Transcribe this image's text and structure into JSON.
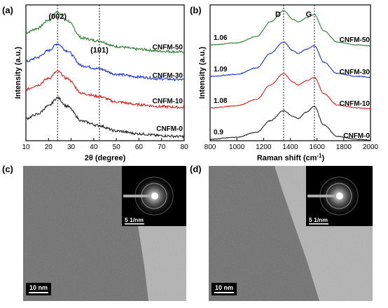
{
  "chart_data": [
    {
      "panel": "(a)",
      "type": "line",
      "xlabel": "2θ (degree)",
      "ylabel": "Intensity (a.u.)",
      "xlim": [
        10,
        80
      ],
      "xticks": [
        "10",
        "20",
        "30",
        "40",
        "50",
        "60",
        "70",
        "80"
      ],
      "grid": false,
      "legend": "none",
      "annotations": [
        {
          "text": "(002)",
          "x": 24
        },
        {
          "text": "(101)",
          "x": 42.5
        }
      ],
      "reference_lines_x": [
        24,
        42.5
      ],
      "series": [
        {
          "name": "CNFM-50",
          "color": "#2e7d32",
          "offset": 3.15,
          "x": [
            10,
            15,
            20,
            24,
            28,
            35,
            42,
            50,
            60,
            70,
            80
          ],
          "y": [
            0.75,
            0.9,
            1.2,
            1.5,
            1.2,
            0.55,
            0.45,
            0.25,
            0.15,
            0.08,
            0.05
          ]
        },
        {
          "name": "CNFM-30",
          "color": "#1e34d0",
          "offset": 2.15,
          "x": [
            10,
            15,
            20,
            24,
            28,
            35,
            42,
            50,
            60,
            70,
            80
          ],
          "y": [
            0.7,
            0.85,
            1.1,
            1.35,
            1.1,
            0.55,
            0.45,
            0.25,
            0.15,
            0.08,
            0.05
          ]
        },
        {
          "name": "CNFM-10",
          "color": "#e02020",
          "offset": 1.15,
          "x": [
            10,
            15,
            20,
            24,
            28,
            35,
            42,
            50,
            60,
            70,
            80
          ],
          "y": [
            0.7,
            0.85,
            1.1,
            1.35,
            1.1,
            0.55,
            0.45,
            0.25,
            0.15,
            0.08,
            0.05
          ]
        },
        {
          "name": "CNFM-0",
          "color": "#222222",
          "offset": 0.1,
          "x": [
            10,
            15,
            20,
            24,
            28,
            35,
            42,
            50,
            60,
            70,
            80
          ],
          "y": [
            0.7,
            0.85,
            1.15,
            1.45,
            1.15,
            0.6,
            0.45,
            0.25,
            0.15,
            0.08,
            0.05
          ]
        }
      ]
    },
    {
      "panel": "(b)",
      "type": "line",
      "xlabel": "Raman shift (cm",
      "xlabel_sup": "-1",
      "xlabel_end": ")",
      "ylabel": "Intensity (a.u.)",
      "xlim": [
        800,
        2000
      ],
      "xticks": [
        "800",
        "1000",
        "1200",
        "1400",
        "1600",
        "1800",
        "2000"
      ],
      "grid": false,
      "legend": "none",
      "annotations": [
        {
          "text": "D",
          "x": 1350
        },
        {
          "text": "G",
          "x": 1580
        }
      ],
      "reference_lines_x": [
        1350,
        1580
      ],
      "ratio_labels": [
        "1.06",
        "1.09",
        "1.08",
        "0.9"
      ],
      "series": [
        {
          "name": "CNFM-50",
          "color": "#2e7d32",
          "offset": 3.3,
          "x": [
            800,
            1000,
            1150,
            1250,
            1350,
            1420,
            1460,
            1520,
            1580,
            1650,
            1750,
            1900,
            2000
          ],
          "y": [
            0.05,
            0.12,
            0.35,
            0.85,
            1.25,
            0.95,
            0.85,
            1.0,
            1.12,
            0.55,
            0.15,
            0.05,
            0.02
          ]
        },
        {
          "name": "CNFM-30",
          "color": "#1e34d0",
          "offset": 2.2,
          "x": [
            800,
            1000,
            1150,
            1250,
            1350,
            1420,
            1460,
            1520,
            1580,
            1650,
            1750,
            1900,
            2000
          ],
          "y": [
            0.05,
            0.12,
            0.35,
            0.85,
            1.25,
            0.95,
            0.85,
            1.0,
            1.12,
            0.55,
            0.15,
            0.05,
            0.02
          ]
        },
        {
          "name": "CNFM-10",
          "color": "#e02020",
          "offset": 1.1,
          "x": [
            800,
            1000,
            1150,
            1250,
            1350,
            1420,
            1460,
            1520,
            1580,
            1650,
            1750,
            1900,
            2000
          ],
          "y": [
            0.05,
            0.12,
            0.35,
            0.85,
            1.25,
            0.95,
            0.85,
            1.0,
            1.12,
            0.55,
            0.15,
            0.05,
            0.02
          ]
        },
        {
          "name": "CNFM-0",
          "color": "#222222",
          "offset": 0.0,
          "x": [
            800,
            1000,
            1150,
            1250,
            1350,
            1420,
            1460,
            1520,
            1580,
            1650,
            1750,
            1900,
            2000
          ],
          "y": [
            0.05,
            0.12,
            0.3,
            0.7,
            1.05,
            0.85,
            0.78,
            1.0,
            1.2,
            0.55,
            0.15,
            0.05,
            0.02
          ]
        }
      ]
    }
  ],
  "panels": {
    "a": "(a)",
    "b": "(b)",
    "c": "(c)",
    "d": "(d)"
  },
  "tem": [
    {
      "scale_bar": "10 nm",
      "saed_scale": "5 1/nm"
    },
    {
      "scale_bar": "10 nm",
      "saed_scale": "5 1/nm"
    }
  ]
}
